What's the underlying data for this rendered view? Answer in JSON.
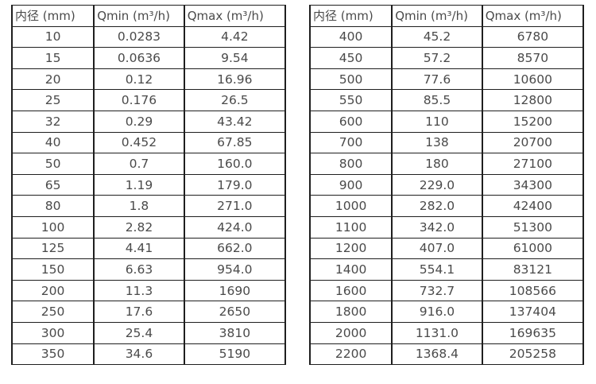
{
  "colors": {
    "background": "#ffffff",
    "border": "#1f1f1f",
    "text": "#4a4a4a"
  },
  "chart_data": [
    {
      "type": "table",
      "title": "",
      "columns": [
        "内径 (mm)",
        "Qmin (m³/h)",
        "Qmax (m³/h)"
      ],
      "rows": [
        [
          "10",
          "0.0283",
          "4.42"
        ],
        [
          "15",
          "0.0636",
          "9.54"
        ],
        [
          "20",
          "0.12",
          "16.96"
        ],
        [
          "25",
          "0.176",
          "26.5"
        ],
        [
          "32",
          "0.29",
          "43.42"
        ],
        [
          "40",
          "0.452",
          "67.85"
        ],
        [
          "50",
          "0.7",
          "160.0"
        ],
        [
          "65",
          "1.19",
          "179.0"
        ],
        [
          "80",
          "1.8",
          "271.0"
        ],
        [
          "100",
          "2.82",
          "424.0"
        ],
        [
          "125",
          "4.41",
          "662.0"
        ],
        [
          "150",
          "6.63",
          "954.0"
        ],
        [
          "200",
          "11.3",
          "1690"
        ],
        [
          "250",
          "17.6",
          "2650"
        ],
        [
          "300",
          "25.4",
          "3810"
        ],
        [
          "350",
          "34.6",
          "5190"
        ]
      ]
    },
    {
      "type": "table",
      "title": "",
      "columns": [
        "内径 (mm)",
        "Qmin (m³/h)",
        "Qmax (m³/h)"
      ],
      "rows": [
        [
          "400",
          "45.2",
          "6780"
        ],
        [
          "450",
          "57.2",
          "8570"
        ],
        [
          "500",
          "77.6",
          "10600"
        ],
        [
          "550",
          "85.5",
          "12800"
        ],
        [
          "600",
          "110",
          "15200"
        ],
        [
          "700",
          "138",
          "20700"
        ],
        [
          "800",
          "180",
          "27100"
        ],
        [
          "900",
          "229.0",
          "34300"
        ],
        [
          "1000",
          "282.0",
          "42400"
        ],
        [
          "1100",
          "342.0",
          "51300"
        ],
        [
          "1200",
          "407.0",
          "61000"
        ],
        [
          "1400",
          "554.1",
          "83121"
        ],
        [
          "1600",
          "732.7",
          "108566"
        ],
        [
          "1800",
          "916.0",
          "137404"
        ],
        [
          "2000",
          "1131.0",
          "169635"
        ],
        [
          "2200",
          "1368.4",
          "205258"
        ]
      ]
    }
  ]
}
